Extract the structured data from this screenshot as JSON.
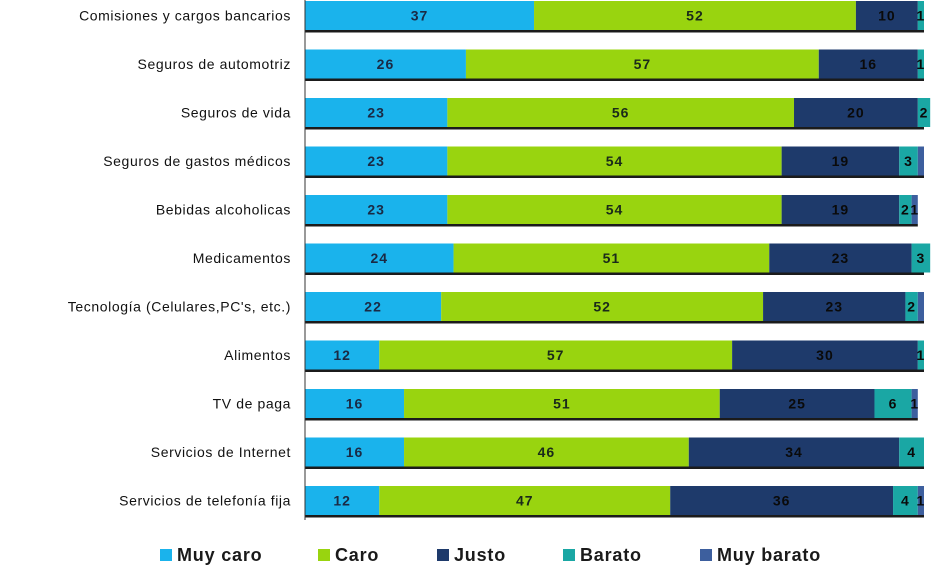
{
  "chart_data": {
    "type": "bar",
    "orientation": "horizontal",
    "stacked": true,
    "title": "",
    "xlabel": "",
    "ylabel": "",
    "xlim": [
      0,
      100
    ],
    "grid": false,
    "legend_position": "bottom",
    "categories": [
      "Comisiones y cargos bancarios",
      "Seguros de automotriz",
      "Seguros de vida",
      "Seguros de gastos médicos",
      "Bebidas alcoholicas",
      "Medicamentos",
      "Tecnología (Celulares,PC's, etc.)",
      "Alimentos",
      "TV de paga",
      "Servicios de Internet",
      "Servicios de telefonía fija"
    ],
    "series": [
      {
        "name": "Muy caro",
        "color": "#1ab3ec",
        "label_color": "#1a2a44",
        "values": [
          37,
          26,
          23,
          23,
          23,
          24,
          22,
          12,
          16,
          16,
          12
        ]
      },
      {
        "name": "Caro",
        "color": "#99d40f",
        "label_color": "#1a2a1a",
        "values": [
          52,
          57,
          56,
          54,
          54,
          51,
          52,
          57,
          51,
          46,
          47
        ]
      },
      {
        "name": "Justo",
        "color": "#1e3a6b",
        "label_color": "#0a0a0a",
        "values": [
          10,
          16,
          20,
          19,
          19,
          23,
          23,
          30,
          25,
          34,
          36
        ]
      },
      {
        "name": "Barato",
        "color": "#1aa7a4",
        "label_color": "#0a0a0a",
        "values": [
          1,
          1,
          2,
          3,
          2,
          3,
          2,
          1,
          6,
          4,
          4
        ]
      },
      {
        "name": "Muy barato",
        "color": "#3d5f9e",
        "label_color": "#0a0a0a",
        "values": [
          0,
          0,
          0,
          1,
          1,
          0,
          1,
          0,
          1,
          0,
          1
        ]
      }
    ],
    "data_label_display": [
      [
        "37",
        "52",
        "10",
        "1",
        ""
      ],
      [
        "26",
        "57",
        "16",
        "1",
        ""
      ],
      [
        "23",
        "56",
        "20",
        "2",
        ""
      ],
      [
        "23",
        "54",
        "19",
        "3",
        ""
      ],
      [
        "23",
        "54",
        "19",
        "2",
        "1"
      ],
      [
        "24",
        "51",
        "23",
        "3",
        ""
      ],
      [
        "22",
        "52",
        "23",
        "2",
        ""
      ],
      [
        "12",
        "57",
        "30",
        "1",
        ""
      ],
      [
        "16",
        "51",
        "25",
        "6",
        "1"
      ],
      [
        "16",
        "46",
        "34",
        "4",
        ""
      ],
      [
        "12",
        "47",
        "36",
        "4",
        "1"
      ]
    ]
  }
}
